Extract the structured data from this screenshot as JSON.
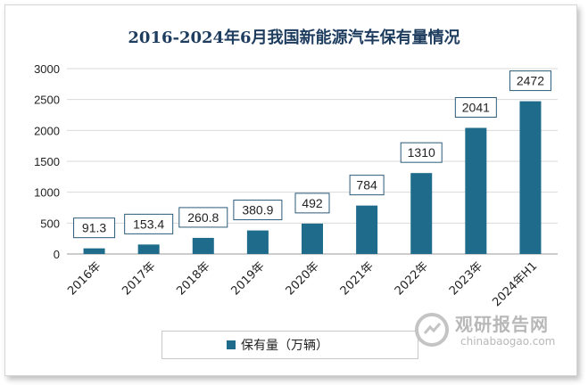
{
  "chart_data": {
    "type": "bar",
    "title": "2016-2024年6月我国新能源汽车保有量情况",
    "categories": [
      "2016年",
      "2017年",
      "2018年",
      "2019年",
      "2020年",
      "2021年",
      "2022年",
      "2023年",
      "2024年H1"
    ],
    "series": [
      {
        "name": "保有量（万辆）",
        "values": [
          91.3,
          153.4,
          260.8,
          380.9,
          492,
          784,
          1310,
          2041,
          2472
        ]
      }
    ],
    "value_labels": [
      "91.3",
      "153.4",
      "260.8",
      "380.9",
      "492",
      "784",
      "1310",
      "2041",
      "2472"
    ],
    "yticks": [
      "0",
      "500",
      "1000",
      "1500",
      "2000",
      "2500",
      "3000"
    ],
    "ylim": [
      0,
      3000
    ],
    "grid": true,
    "legend": "bottom",
    "bar_color": "#1f6b8c"
  },
  "watermark": {
    "brand": "观研报告网",
    "url": "chinabaogao.com"
  }
}
